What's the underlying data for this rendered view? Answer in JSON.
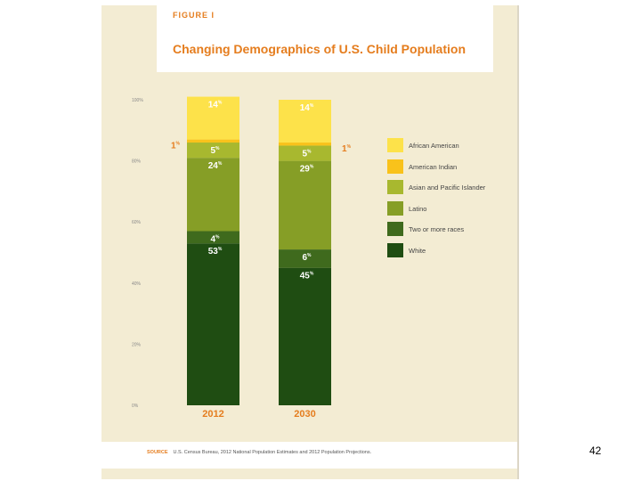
{
  "figure_label": "FIGURE I",
  "title": "Changing Demographics of U.S. Child Population",
  "source_label": "SOURCE",
  "source_text": "U.S. Census Bureau, 2012 National Population Estimates and 2012 Population Projections.",
  "page_number": "42",
  "colors": {
    "African American": "#fde24a",
    "American Indian": "#f9c21b",
    "Asian and Pacific Islander": "#a8b82f",
    "Latino": "#869e26",
    "Two or more races": "#3f6a1d",
    "White": "#1f4d12",
    "accent": "#e57d1e"
  },
  "chart_data": {
    "type": "bar",
    "stacked": true,
    "categories": [
      "2012",
      "2030"
    ],
    "y_ticks": [
      "0%",
      "20%",
      "40%",
      "60%",
      "80%",
      "100%"
    ],
    "ylim": [
      0,
      100
    ],
    "legend_position": "right",
    "grid": false,
    "series": [
      {
        "name": "White",
        "values": [
          53,
          45
        ],
        "labels": [
          "53",
          "45"
        ]
      },
      {
        "name": "Two or more races",
        "values": [
          4,
          6
        ],
        "labels": [
          "4",
          "6"
        ]
      },
      {
        "name": "Latino",
        "values": [
          24,
          29
        ],
        "labels": [
          "24",
          "29"
        ]
      },
      {
        "name": "Asian and Pacific Islander",
        "values": [
          5,
          5
        ],
        "labels": [
          "5",
          "5"
        ]
      },
      {
        "name": "American Indian",
        "values": [
          1,
          1
        ],
        "labels": [
          "1",
          "1"
        ]
      },
      {
        "name": "African American",
        "values": [
          14,
          14
        ],
        "labels": [
          "14",
          "14"
        ]
      }
    ],
    "percent_sign": "%"
  }
}
